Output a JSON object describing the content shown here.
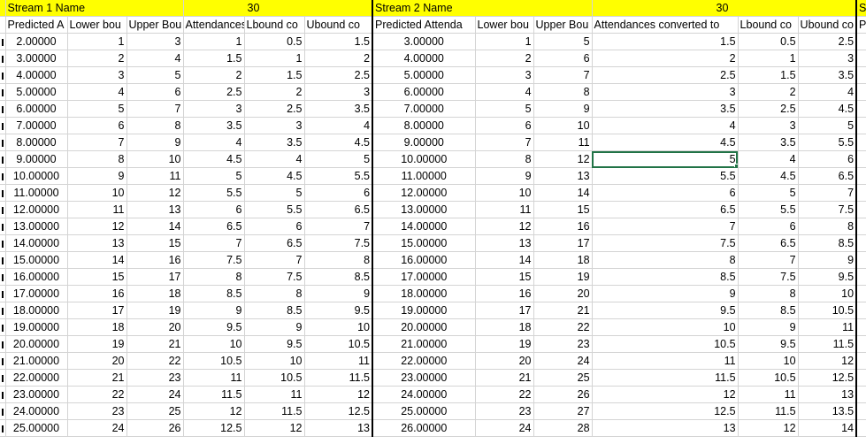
{
  "stream1": {
    "name_label": "Stream 1 Name",
    "name_value": "30",
    "headers": [
      "Predicted A",
      "Lower bou",
      "Upper Bou",
      "Attendances c",
      "Lbound co",
      "Ubound co"
    ]
  },
  "stream2": {
    "name_label": "Stream 2 Name",
    "name_value": "30",
    "headers": [
      "Predicted Attenda",
      "Lower bou",
      "Upper Bou",
      "Attendances converted to",
      "Lbound co",
      "Ubound co"
    ]
  },
  "stream3": {
    "name_label": "Str",
    "headers": [
      "Pre"
    ]
  },
  "rows": [
    [
      "2.00000",
      "1",
      "3",
      "1",
      "0.5",
      "1.5",
      "3.00000",
      "1",
      "5",
      "1.5",
      "0.5",
      "2.5"
    ],
    [
      "3.00000",
      "2",
      "4",
      "1.5",
      "1",
      "2",
      "4.00000",
      "2",
      "6",
      "2",
      "1",
      "3"
    ],
    [
      "4.00000",
      "3",
      "5",
      "2",
      "1.5",
      "2.5",
      "5.00000",
      "3",
      "7",
      "2.5",
      "1.5",
      "3.5"
    ],
    [
      "5.00000",
      "4",
      "6",
      "2.5",
      "2",
      "3",
      "6.00000",
      "4",
      "8",
      "3",
      "2",
      "4"
    ],
    [
      "6.00000",
      "5",
      "7",
      "3",
      "2.5",
      "3.5",
      "7.00000",
      "5",
      "9",
      "3.5",
      "2.5",
      "4.5"
    ],
    [
      "7.00000",
      "6",
      "8",
      "3.5",
      "3",
      "4",
      "8.00000",
      "6",
      "10",
      "4",
      "3",
      "5"
    ],
    [
      "8.00000",
      "7",
      "9",
      "4",
      "3.5",
      "4.5",
      "9.00000",
      "7",
      "11",
      "4.5",
      "3.5",
      "5.5"
    ],
    [
      "9.00000",
      "8",
      "10",
      "4.5",
      "4",
      "5",
      "10.00000",
      "8",
      "12",
      "5",
      "4",
      "6"
    ],
    [
      "10.00000",
      "9",
      "11",
      "5",
      "4.5",
      "5.5",
      "11.00000",
      "9",
      "13",
      "5.5",
      "4.5",
      "6.5"
    ],
    [
      "11.00000",
      "10",
      "12",
      "5.5",
      "5",
      "6",
      "12.00000",
      "10",
      "14",
      "6",
      "5",
      "7"
    ],
    [
      "12.00000",
      "11",
      "13",
      "6",
      "5.5",
      "6.5",
      "13.00000",
      "11",
      "15",
      "6.5",
      "5.5",
      "7.5"
    ],
    [
      "13.00000",
      "12",
      "14",
      "6.5",
      "6",
      "7",
      "14.00000",
      "12",
      "16",
      "7",
      "6",
      "8"
    ],
    [
      "14.00000",
      "13",
      "15",
      "7",
      "6.5",
      "7.5",
      "15.00000",
      "13",
      "17",
      "7.5",
      "6.5",
      "8.5"
    ],
    [
      "15.00000",
      "14",
      "16",
      "7.5",
      "7",
      "8",
      "16.00000",
      "14",
      "18",
      "8",
      "7",
      "9"
    ],
    [
      "16.00000",
      "15",
      "17",
      "8",
      "7.5",
      "8.5",
      "17.00000",
      "15",
      "19",
      "8.5",
      "7.5",
      "9.5"
    ],
    [
      "17.00000",
      "16",
      "18",
      "8.5",
      "8",
      "9",
      "18.00000",
      "16",
      "20",
      "9",
      "8",
      "10"
    ],
    [
      "18.00000",
      "17",
      "19",
      "9",
      "8.5",
      "9.5",
      "19.00000",
      "17",
      "21",
      "9.5",
      "8.5",
      "10.5"
    ],
    [
      "19.00000",
      "18",
      "20",
      "9.5",
      "9",
      "10",
      "20.00000",
      "18",
      "22",
      "10",
      "9",
      "11"
    ],
    [
      "20.00000",
      "19",
      "21",
      "10",
      "9.5",
      "10.5",
      "21.00000",
      "19",
      "23",
      "10.5",
      "9.5",
      "11.5"
    ],
    [
      "21.00000",
      "20",
      "22",
      "10.5",
      "10",
      "11",
      "22.00000",
      "20",
      "24",
      "11",
      "10",
      "12"
    ],
    [
      "22.00000",
      "21",
      "23",
      "11",
      "10.5",
      "11.5",
      "23.00000",
      "21",
      "25",
      "11.5",
      "10.5",
      "12.5"
    ],
    [
      "23.00000",
      "22",
      "24",
      "11.5",
      "11",
      "12",
      "24.00000",
      "22",
      "26",
      "12",
      "11",
      "13"
    ],
    [
      "24.00000",
      "23",
      "25",
      "12",
      "11.5",
      "12.5",
      "25.00000",
      "23",
      "27",
      "12.5",
      "11.5",
      "13.5"
    ],
    [
      "25.00000",
      "24",
      "26",
      "12.5",
      "12",
      "13",
      "26.00000",
      "24",
      "28",
      "13",
      "12",
      "14"
    ]
  ],
  "selected_cell": {
    "row": 7,
    "col": 9
  }
}
